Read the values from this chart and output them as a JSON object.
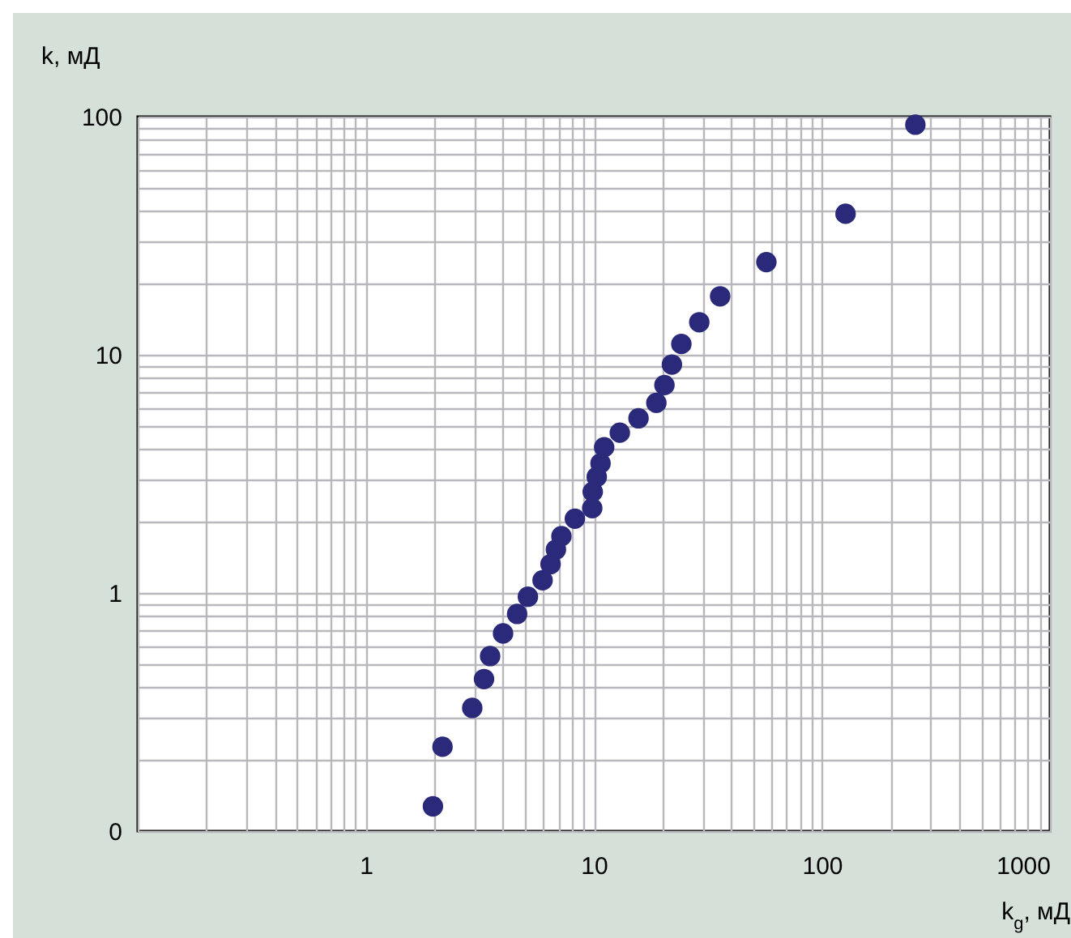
{
  "chart_data": {
    "type": "scatter",
    "xlabel": "k$_{g}$, мД",
    "ylabel": "k, мД",
    "log": "xy",
    "grid": true,
    "marker": "circle",
    "xlim": [
      0.1,
      1000
    ],
    "ylim": [
      0.1,
      100
    ],
    "xticks": [
      {
        "value": 0.1,
        "label": null
      },
      {
        "value": 0.2,
        "label": null
      },
      {
        "value": 0.3,
        "label": null
      },
      {
        "value": 0.4,
        "label": null
      },
      {
        "value": 0.5,
        "label": null
      },
      {
        "value": 0.6,
        "label": null
      },
      {
        "value": 0.7,
        "label": null
      },
      {
        "value": 0.8,
        "label": null
      },
      {
        "value": 0.9,
        "label": null
      },
      1,
      {
        "value": 2,
        "label": null
      },
      {
        "value": 3,
        "label": null
      },
      {
        "value": 4,
        "label": null
      },
      {
        "value": 5,
        "label": null
      },
      {
        "value": 6,
        "label": null
      },
      {
        "value": 7,
        "label": null
      },
      {
        "value": 8,
        "label": null
      },
      {
        "value": 9,
        "label": null
      },
      10,
      {
        "value": 20,
        "label": null
      },
      {
        "value": 30,
        "label": null
      },
      {
        "value": 40,
        "label": null
      },
      {
        "value": 50,
        "label": null
      },
      {
        "value": 60,
        "label": null
      },
      {
        "value": 70,
        "label": null
      },
      {
        "value": 80,
        "label": null
      },
      {
        "value": 90,
        "label": null
      },
      100,
      {
        "value": 200,
        "label": null
      },
      {
        "value": 300,
        "label": null
      },
      {
        "value": 400,
        "label": null
      },
      {
        "value": 500,
        "label": null
      },
      {
        "value": 600,
        "label": null
      },
      {
        "value": 700,
        "label": null
      },
      {
        "value": 800,
        "label": null
      },
      {
        "value": 900,
        "label": null
      },
      1000
    ],
    "yticks": [
      {
        "value": 0.1,
        "label": "0"
      },
      {
        "value": 0.2,
        "label": null
      },
      {
        "value": 0.3,
        "label": null
      },
      {
        "value": 0.4,
        "label": null
      },
      {
        "value": 0.5,
        "label": null
      },
      {
        "value": 0.6,
        "label": null
      },
      {
        "value": 0.7,
        "label": null
      },
      {
        "value": 0.8,
        "label": null
      },
      {
        "value": 0.9,
        "label": null
      },
      1,
      {
        "value": 2,
        "label": null
      },
      {
        "value": 3,
        "label": null
      },
      {
        "value": 4,
        "label": null
      },
      {
        "value": 5,
        "label": null
      },
      {
        "value": 6,
        "label": null
      },
      {
        "value": 7,
        "label": null
      },
      {
        "value": 8,
        "label": null
      },
      {
        "value": 9,
        "label": null
      },
      10,
      {
        "value": 20,
        "label": null
      },
      {
        "value": 30,
        "label": null
      },
      {
        "value": 40,
        "label": null
      },
      {
        "value": 50,
        "label": null
      },
      {
        "value": 60,
        "label": null
      },
      {
        "value": 70,
        "label": null
      },
      {
        "value": 80,
        "label": null
      },
      {
        "value": 90,
        "label": null
      },
      100
    ],
    "series": [
      {
        "color": "#2b2a7a",
        "x": [
          1.97,
          2.17,
          2.93,
          3.3,
          3.51,
          4.0,
          4.61,
          5.14,
          5.96,
          6.46,
          6.82,
          7.21,
          8.26,
          9.84,
          9.89,
          10.3,
          10.7,
          11.1,
          13.0,
          15.7,
          18.8,
          20.4,
          22.0,
          24.2,
          29.0,
          35.8,
          57.1,
          127,
          257
        ],
        "values": [
          0.127,
          0.226,
          0.329,
          0.435,
          0.543,
          0.676,
          0.816,
          0.964,
          1.13,
          1.32,
          1.52,
          1.73,
          2.05,
          2.27,
          2.66,
          3.07,
          3.5,
          4.09,
          4.71,
          5.41,
          6.28,
          7.46,
          9.1,
          11.1,
          13.7,
          17.6,
          24.5,
          39.1,
          92.5
        ]
      }
    ]
  }
}
